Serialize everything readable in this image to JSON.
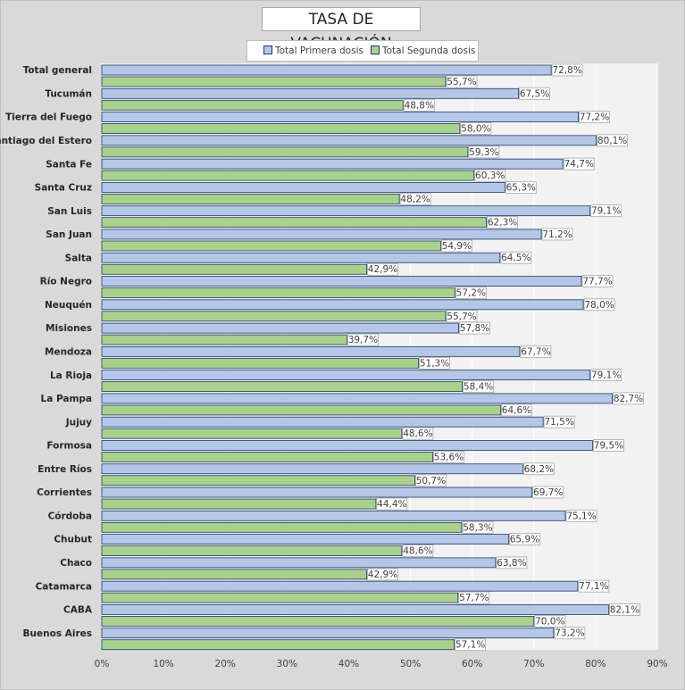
{
  "chart_data": {
    "type": "bar",
    "orientation": "horizontal",
    "title": "TASA DE VACUNACIÓN",
    "xlim": [
      0,
      90
    ],
    "xticks": [
      "0%",
      "10%",
      "20%",
      "30%",
      "40%",
      "50%",
      "60%",
      "70%",
      "80%",
      "90%"
    ],
    "grid": true,
    "legend_position": "top",
    "categories": [
      "Total general",
      "Tucumán",
      "Tierra del Fuego",
      "Santiago del Estero",
      "Santa Fe",
      "Santa Cruz",
      "San Luis",
      "San Juan",
      "Salta",
      "Río Negro",
      "Neuquén",
      "Misiones",
      "Mendoza",
      "La Rioja",
      "La Pampa",
      "Jujuy",
      "Formosa",
      "Entre Ríos",
      "Corrientes",
      "Córdoba",
      "Chubut",
      "Chaco",
      "Catamarca",
      "CABA",
      "Buenos Aires"
    ],
    "series": [
      {
        "name": "Total Primera dosis",
        "color": "#b4c7e7",
        "values": [
          72.8,
          67.5,
          77.2,
          80.1,
          74.7,
          65.3,
          79.1,
          71.2,
          64.5,
          77.7,
          78.0,
          57.8,
          67.7,
          79.1,
          82.7,
          71.5,
          79.5,
          68.2,
          69.7,
          75.1,
          65.9,
          63.8,
          77.1,
          82.1,
          73.2
        ],
        "labels": [
          "72,8%",
          "67,5%",
          "77,2%",
          "80,1%",
          "74,7%",
          "65,3%",
          "79,1%",
          "71,2%",
          "64,5%",
          "77,7%",
          "78,0%",
          "57,8%",
          "67,7%",
          "79,1%",
          "82,7%",
          "71,5%",
          "79,5%",
          "68,2%",
          "69,7%",
          "75,1%",
          "65,9%",
          "63,8%",
          "77,1%",
          "82,1%",
          "73,2%"
        ]
      },
      {
        "name": "Total Segunda dosis",
        "color": "#a9d18e",
        "values": [
          55.7,
          48.8,
          58.0,
          59.3,
          60.3,
          48.2,
          62.3,
          54.9,
          42.9,
          57.2,
          55.7,
          39.7,
          51.3,
          58.4,
          64.6,
          48.6,
          53.6,
          50.7,
          44.4,
          58.3,
          48.6,
          42.9,
          57.7,
          70.0,
          57.1
        ],
        "labels": [
          "55,7%",
          "48,8%",
          "58,0%",
          "59,3%",
          "60,3%",
          "48,2%",
          "62,3%",
          "54,9%",
          "42,9%",
          "57,2%",
          "55,7%",
          "39,7%",
          "51,3%",
          "58,4%",
          "64,6%",
          "48,6%",
          "53,6%",
          "50,7%",
          "44,4%",
          "58,3%",
          "48,6%",
          "42,9%",
          "57,7%",
          "70,0%",
          "57,1%"
        ]
      }
    ]
  }
}
